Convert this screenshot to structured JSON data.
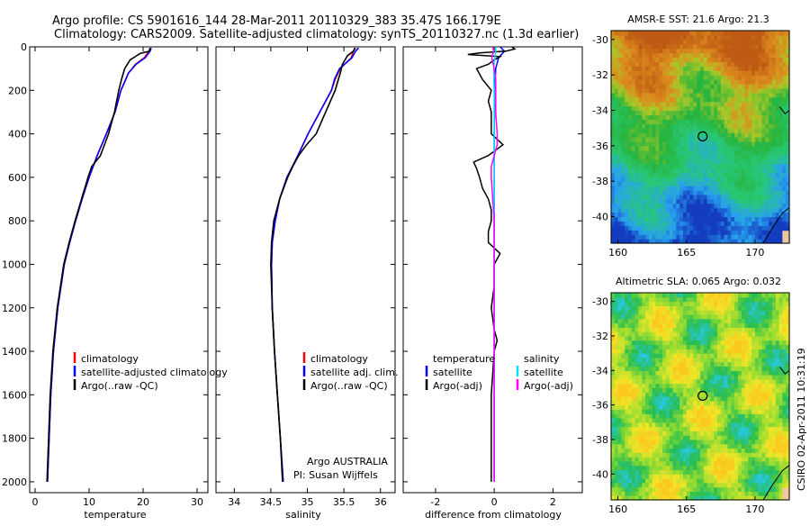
{
  "header": {
    "line1": "Argo profile: CS 5901616_144 28-Mar-2011 20110329_383 35.47S 166.179E",
    "line2": "Climatology: CARS2009. Satellite-adjusted climatology: synTS_20110327.nc (1.3d earlier)"
  },
  "colors": {
    "climatology": "#ff0000",
    "satellite": "#0000ff",
    "argo": "#000000",
    "sal_sat": "#00e0ff",
    "sal_argo": "#ff00ff"
  },
  "chart_data": [
    {
      "type": "line",
      "xlabel": "temperature",
      "xlim": [
        -1,
        32
      ],
      "ylim": [
        2050,
        0
      ],
      "xticks": [
        0,
        10,
        20,
        30
      ],
      "yticks": [
        0,
        200,
        400,
        600,
        800,
        1000,
        1200,
        1400,
        1600,
        1800,
        2000
      ],
      "legend": [
        "climatology",
        "satellite-adjusted climatology",
        "Argo(..raw -QC)"
      ],
      "series": [
        {
          "name": "climatology",
          "color": "red",
          "depth": [
            5,
            20,
            50,
            80,
            120,
            200,
            300,
            400,
            500,
            600,
            700,
            800,
            900,
            1000,
            1200,
            1400,
            1600,
            1800,
            2000
          ],
          "values": [
            21.3,
            21.1,
            20.2,
            18.6,
            17.3,
            15.9,
            14.8,
            13.2,
            11.5,
            10.0,
            8.7,
            7.5,
            6.4,
            5.4,
            4.2,
            3.4,
            2.9,
            2.6,
            2.3
          ]
        },
        {
          "name": "satellite-adjusted climatology",
          "color": "blue",
          "depth": [
            5,
            20,
            50,
            80,
            120,
            200,
            300,
            400,
            500,
            600,
            700,
            800,
            900,
            1000,
            1200,
            1400,
            1600,
            1800,
            2000
          ],
          "values": [
            21.5,
            21.3,
            20.4,
            18.7,
            17.3,
            15.9,
            14.8,
            13.2,
            11.5,
            10.0,
            8.7,
            7.5,
            6.4,
            5.4,
            4.2,
            3.4,
            2.9,
            2.6,
            2.3
          ]
        },
        {
          "name": "Argo(..raw -QC)",
          "color": "black",
          "depth": [
            5,
            20,
            30,
            60,
            100,
            150,
            200,
            300,
            400,
            500,
            550,
            600,
            700,
            800,
            900,
            1000,
            1200,
            1400,
            1600,
            1800,
            2000
          ],
          "values": [
            21.3,
            21.2,
            19.5,
            17.6,
            16.6,
            16.0,
            15.5,
            14.7,
            13.6,
            12.1,
            10.5,
            9.8,
            8.6,
            7.4,
            6.3,
            5.3,
            4.1,
            3.3,
            2.8,
            2.5,
            2.2
          ]
        }
      ]
    },
    {
      "type": "line",
      "xlabel": "salinity",
      "xlim": [
        33.75,
        36.2
      ],
      "ylim": [
        2050,
        0
      ],
      "xticks": [
        34,
        34.5,
        35,
        35.5,
        36
      ],
      "legend": [
        "climatology",
        "satellite adj. clim.",
        "Argo(..raw -QC)"
      ],
      "annotation": [
        "Argo AUSTRALIA",
        "PI: Susan Wijffels"
      ],
      "series": [
        {
          "name": "climatology",
          "color": "red",
          "depth": [
            5,
            20,
            50,
            100,
            150,
            200,
            300,
            400,
            500,
            600,
            700,
            800,
            900,
            1000,
            1200,
            1400,
            1600,
            1800,
            2000
          ],
          "values": [
            35.66,
            35.63,
            35.6,
            35.45,
            35.38,
            35.33,
            35.17,
            35.01,
            34.87,
            34.72,
            34.62,
            34.56,
            34.52,
            34.51,
            34.52,
            34.55,
            34.59,
            34.63,
            34.67
          ]
        },
        {
          "name": "satellite adj. clim.",
          "color": "blue",
          "depth": [
            5,
            20,
            50,
            100,
            150,
            200,
            300,
            400,
            500,
            600,
            700,
            800,
            900,
            1000,
            1200,
            1400,
            1600,
            1800,
            2000
          ],
          "values": [
            35.7,
            35.66,
            35.61,
            35.44,
            35.37,
            35.33,
            35.17,
            35.01,
            34.87,
            34.72,
            34.62,
            34.56,
            34.52,
            34.51,
            34.52,
            34.55,
            34.59,
            34.63,
            34.67
          ]
        },
        {
          "name": "Argo(..raw -QC)",
          "color": "black",
          "depth": [
            5,
            20,
            40,
            80,
            120,
            200,
            300,
            400,
            450,
            500,
            550,
            600,
            700,
            800,
            900,
            1000,
            1200,
            1400,
            1600,
            1800,
            2000
          ],
          "values": [
            35.65,
            35.63,
            35.55,
            35.48,
            35.45,
            35.38,
            35.25,
            35.12,
            34.99,
            34.88,
            34.8,
            34.73,
            34.62,
            34.54,
            34.51,
            34.5,
            34.52,
            34.55,
            34.59,
            34.63,
            34.66
          ]
        }
      ]
    },
    {
      "type": "line",
      "xlabel": "difference from climatology",
      "xlim": [
        -3.1,
        3.0
      ],
      "ylim": [
        2050,
        0
      ],
      "xticks": [
        -2,
        0,
        2
      ],
      "legend_temperature": [
        "temperature",
        "satellite",
        "Argo(-adj)"
      ],
      "legend_salinity": [
        "salinity",
        "satellite",
        "Argo(-adj)"
      ],
      "series": [
        {
          "name": "satellite",
          "group": "temperature",
          "color": "blue",
          "depth": [
            0,
            20,
            50,
            100,
            200,
            400,
            600,
            800,
            1000,
            1400,
            2000
          ],
          "values": [
            0.2,
            0.35,
            0.15,
            0.05,
            0.02,
            0.0,
            0.0,
            0.0,
            0.0,
            0.0,
            0.0
          ]
        },
        {
          "name": "Argo(-adj)",
          "group": "temperature",
          "color": "black",
          "depth": [
            0,
            10,
            20,
            28,
            35,
            45,
            60,
            80,
            100,
            150,
            200,
            250,
            300,
            400,
            450,
            500,
            530,
            560,
            600,
            650,
            700,
            750,
            800,
            850,
            900,
            950,
            1000,
            1100,
            1200,
            1300,
            1350,
            1400,
            1600,
            1800,
            2000
          ],
          "values": [
            0.6,
            0.7,
            0.4,
            -0.5,
            -0.9,
            0.2,
            0.0,
            -0.2,
            -0.6,
            -0.4,
            -0.1,
            -0.2,
            -0.1,
            -0.1,
            0.3,
            -0.2,
            -0.7,
            -0.6,
            -0.5,
            -0.4,
            -0.2,
            -0.1,
            -0.1,
            -0.2,
            -0.2,
            0.2,
            0.0,
            0.0,
            -0.1,
            0.0,
            0.1,
            0.0,
            -0.1,
            -0.1,
            -0.1
          ]
        },
        {
          "name": "satellite",
          "group": "salinity",
          "color": "cyan",
          "depth": [
            0,
            20,
            50,
            100,
            200,
            400,
            600,
            800,
            1000,
            1400,
            2000
          ],
          "values": [
            0.05,
            0.05,
            0.02,
            -0.02,
            0.0,
            0.0,
            0.0,
            0.0,
            0.0,
            0.0,
            0.0
          ]
        },
        {
          "name": "Argo(-adj)",
          "group": "salinity",
          "color": "magenta",
          "depth": [
            0,
            20,
            50,
            100,
            150,
            200,
            300,
            400,
            450,
            500,
            550,
            600,
            700,
            800,
            900,
            1000,
            1200,
            1400,
            1600,
            1800,
            2000
          ],
          "values": [
            -0.05,
            -0.02,
            -0.08,
            0.0,
            0.05,
            0.05,
            0.05,
            0.1,
            0.1,
            0.0,
            -0.1,
            -0.1,
            -0.05,
            0.0,
            0.0,
            0.0,
            0.0,
            0.0,
            0.0,
            0.0,
            0.0
          ]
        }
      ]
    },
    {
      "type": "heatmap",
      "title": "AMSR-E SST: 21.6 Argo: 21.3",
      "xlim": [
        159.5,
        172.5
      ],
      "ylim": [
        -41.5,
        -29.5
      ],
      "xticks": [
        160,
        165,
        170
      ],
      "yticks": [
        -30,
        -32,
        -34,
        -36,
        -38,
        -40
      ],
      "marker": {
        "lon": 166.179,
        "lat": -35.47
      }
    },
    {
      "type": "heatmap",
      "title": "Altimetric SLA: 0.065 Argo: 0.032",
      "xlim": [
        159.5,
        172.5
      ],
      "ylim": [
        -41.5,
        -29.5
      ],
      "xticks": [
        160,
        165,
        170
      ],
      "yticks": [
        -30,
        -32,
        -34,
        -36,
        -38,
        -40
      ],
      "marker": {
        "lon": 166.179,
        "lat": -35.47
      }
    }
  ],
  "side_label": "CSIRO 02-Apr-2011 10:31:19"
}
